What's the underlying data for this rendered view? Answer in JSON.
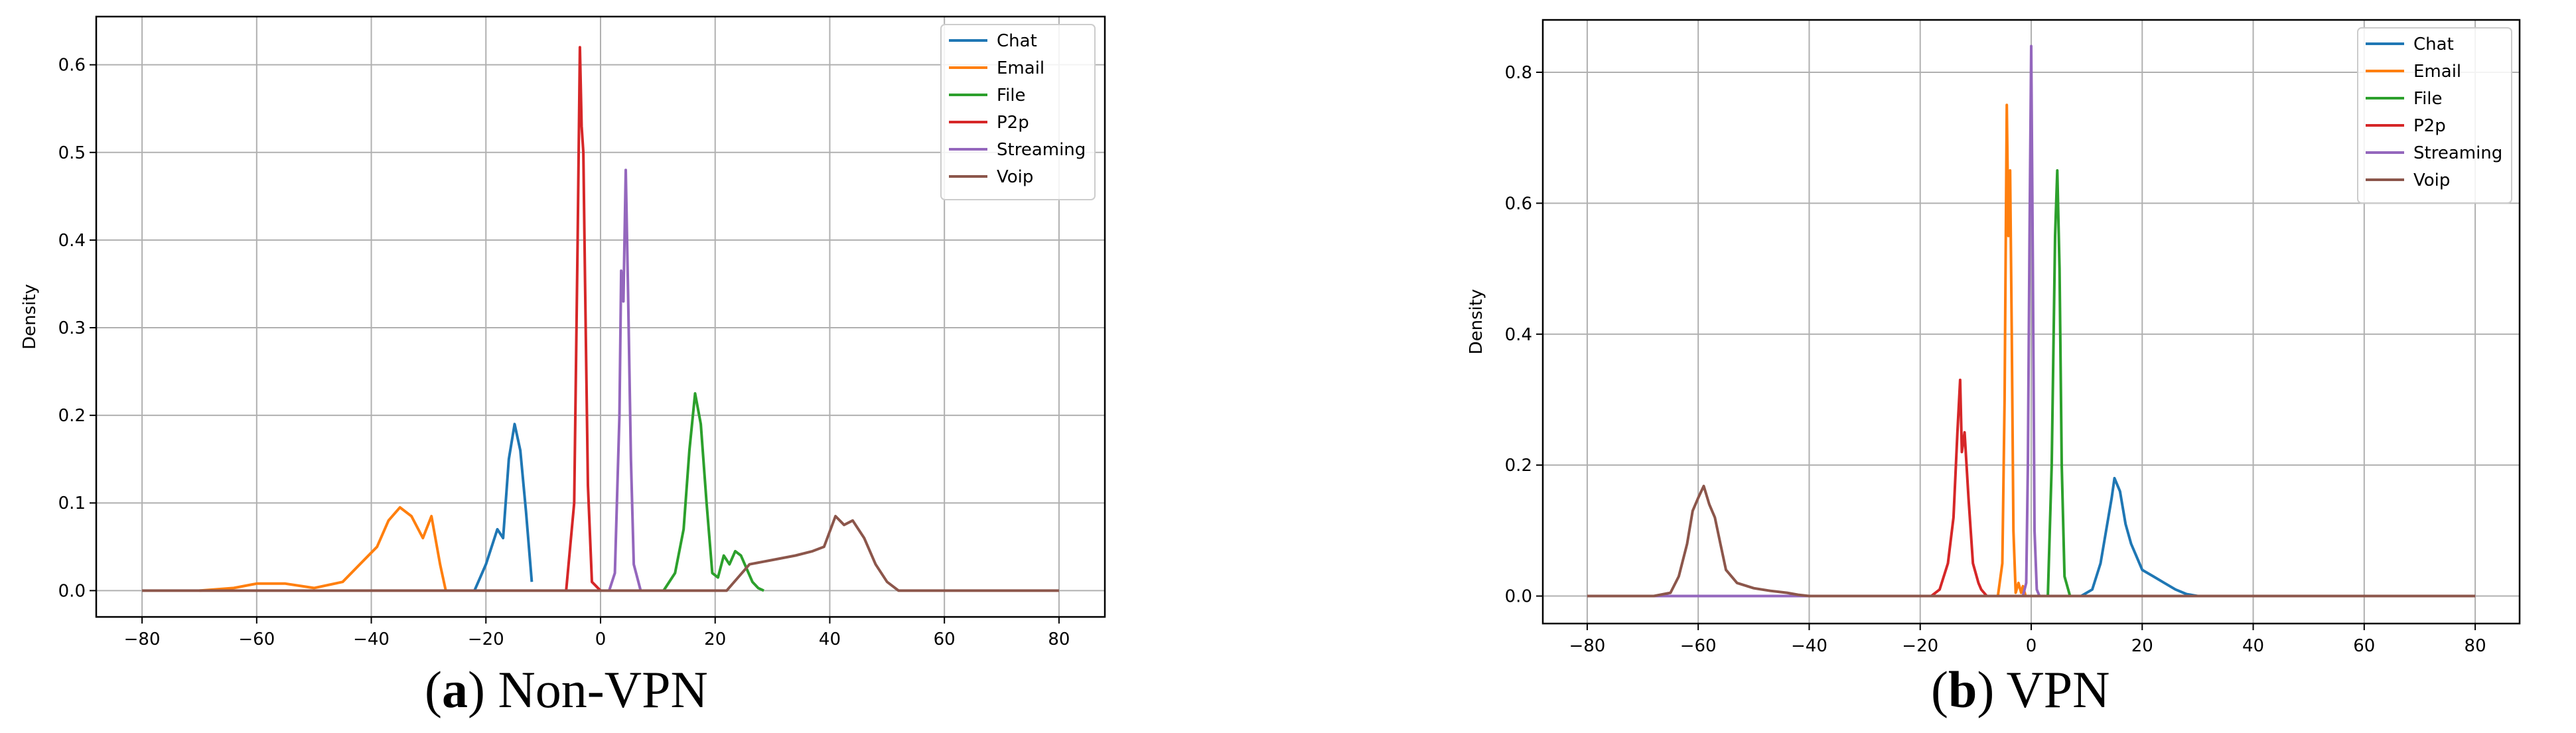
{
  "chart_data": [
    {
      "type": "line",
      "caption_label": "a",
      "caption_text": "Non-VPN",
      "ylabel": "Density",
      "xlabel": "",
      "xlim": [
        -88,
        88
      ],
      "ylim": [
        -0.03,
        0.655
      ],
      "xticks": [
        -80,
        -60,
        -40,
        -20,
        0,
        20,
        40,
        60,
        80
      ],
      "yticks": [
        0.0,
        0.1,
        0.2,
        0.3,
        0.4,
        0.5,
        0.6
      ],
      "ytick_labels": [
        "0.0",
        "0.1",
        "0.2",
        "0.3",
        "0.4",
        "0.5",
        "0.6"
      ],
      "grid": true,
      "legend": "top-right",
      "series": [
        {
          "name": "Chat",
          "color": "#1f77b4",
          "x": [
            -22,
            -20,
            -18,
            -17,
            -16,
            -15,
            -14,
            -13,
            -12
          ],
          "y": [
            0,
            0.03,
            0.07,
            0.06,
            0.15,
            0.19,
            0.16,
            0.09,
            0.01
          ]
        },
        {
          "name": "Email",
          "color": "#ff7f0e",
          "x": [
            -70,
            -64,
            -60,
            -55,
            -50,
            -45,
            -42,
            -39,
            -37,
            -35,
            -33,
            -31,
            -29.5,
            -28,
            -27
          ],
          "y": [
            0,
            0.003,
            0.008,
            0.008,
            0.003,
            0.01,
            0.03,
            0.05,
            0.08,
            0.095,
            0.085,
            0.06,
            0.085,
            0.03,
            0
          ]
        },
        {
          "name": "File",
          "color": "#2ca02c",
          "x": [
            11,
            13,
            14.5,
            15.5,
            16.5,
            17.5,
            18.5,
            19.5,
            20.5,
            21.5,
            22.5,
            23.5,
            24.5,
            25.5,
            26.5,
            27.5,
            28.5
          ],
          "y": [
            0,
            0.02,
            0.07,
            0.16,
            0.225,
            0.19,
            0.1,
            0.02,
            0.015,
            0.04,
            0.03,
            0.045,
            0.04,
            0.025,
            0.01,
            0.003,
            0
          ]
        },
        {
          "name": "P2p",
          "color": "#d62728",
          "x": [
            -6,
            -4.6,
            -4,
            -3.6,
            -3.3,
            -3,
            -2.7,
            -2.2,
            -1.5,
            0
          ],
          "y": [
            0,
            0.1,
            0.4,
            0.62,
            0.53,
            0.5,
            0.35,
            0.12,
            0.01,
            0
          ]
        },
        {
          "name": "Streaming",
          "color": "#9467bd",
          "x": [
            1.5,
            2.5,
            3.3,
            3.6,
            4,
            4.4,
            4.8,
            5.3,
            5.8,
            7
          ],
          "y": [
            0,
            0.02,
            0.2,
            0.365,
            0.33,
            0.48,
            0.34,
            0.15,
            0.03,
            0
          ]
        },
        {
          "name": "Voip",
          "color": "#8c564b",
          "x": [
            -80,
            -40,
            22,
            26,
            30,
            34,
            37,
            39,
            41,
            42.5,
            44,
            46,
            48,
            50,
            52,
            80
          ],
          "y": [
            0,
            0,
            0,
            0.03,
            0.035,
            0.04,
            0.045,
            0.05,
            0.085,
            0.075,
            0.08,
            0.06,
            0.03,
            0.01,
            0,
            0
          ]
        }
      ]
    },
    {
      "type": "line",
      "caption_label": "b",
      "caption_text": "VPN",
      "ylabel": "Density",
      "xlabel": "",
      "xlim": [
        -88,
        88
      ],
      "ylim": [
        -0.042,
        0.88
      ],
      "xticks": [
        -80,
        -60,
        -40,
        -20,
        0,
        20,
        40,
        60,
        80
      ],
      "yticks": [
        0.0,
        0.2,
        0.4,
        0.6,
        0.8
      ],
      "ytick_labels": [
        "0.0",
        "0.2",
        "0.4",
        "0.6",
        "0.8"
      ],
      "grid": true,
      "legend": "top-right",
      "series": [
        {
          "name": "Chat",
          "color": "#1f77b4",
          "x": [
            9,
            11,
            12.5,
            13.5,
            14.5,
            15,
            16,
            17,
            18,
            19,
            20,
            22,
            24,
            26,
            28,
            30
          ],
          "y": [
            0,
            0.01,
            0.05,
            0.1,
            0.15,
            0.18,
            0.16,
            0.11,
            0.08,
            0.06,
            0.04,
            0.03,
            0.02,
            0.01,
            0.003,
            0
          ]
        },
        {
          "name": "Email",
          "color": "#ff7f0e",
          "x": [
            -6,
            -5.2,
            -4.8,
            -4.4,
            -4.1,
            -3.8,
            -3.5,
            -3.2,
            -2.8,
            -2.3,
            -1.8,
            -1.5,
            -1
          ],
          "y": [
            0,
            0.05,
            0.3,
            0.75,
            0.55,
            0.65,
            0.4,
            0.1,
            0.005,
            0.02,
            0.005,
            0.015,
            0
          ]
        },
        {
          "name": "File",
          "color": "#2ca02c",
          "x": [
            3,
            3.7,
            4.3,
            4.7,
            5.1,
            5.5,
            6,
            7
          ],
          "y": [
            0,
            0.2,
            0.55,
            0.65,
            0.5,
            0.2,
            0.03,
            0
          ]
        },
        {
          "name": "P2p",
          "color": "#d62728",
          "x": [
            -18,
            -16.5,
            -15,
            -14,
            -13.3,
            -12.8,
            -12.5,
            -12,
            -11.3,
            -10.5,
            -9.5,
            -9,
            -8
          ],
          "y": [
            0,
            0.01,
            0.05,
            0.12,
            0.25,
            0.33,
            0.22,
            0.25,
            0.15,
            0.05,
            0.02,
            0.01,
            0
          ]
        },
        {
          "name": "Streaming",
          "color": "#9467bd",
          "x": [
            -80,
            -62,
            -1.5,
            -0.9,
            -0.6,
            -0.3,
            0,
            0.3,
            0.6,
            1.0,
            1.5,
            80
          ],
          "y": [
            0,
            0,
            0,
            0.02,
            0.2,
            0.55,
            0.84,
            0.5,
            0.1,
            0.01,
            0,
            0
          ]
        },
        {
          "name": "Voip",
          "color": "#8c564b",
          "x": [
            -80,
            -68,
            -65,
            -63.5,
            -62,
            -61,
            -60,
            -59,
            -58,
            -57,
            -56,
            -55,
            -53,
            -50,
            -47,
            -44,
            -42,
            -40,
            80
          ],
          "y": [
            0,
            0,
            0.005,
            0.03,
            0.08,
            0.13,
            0.15,
            0.168,
            0.14,
            0.12,
            0.08,
            0.04,
            0.02,
            0.012,
            0.008,
            0.005,
            0.002,
            0,
            0
          ]
        }
      ]
    }
  ]
}
